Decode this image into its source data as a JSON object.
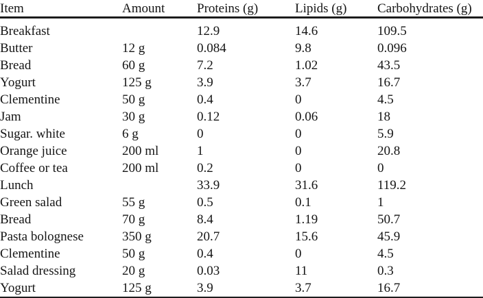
{
  "table": {
    "columns": [
      {
        "key": "item",
        "label": "Item"
      },
      {
        "key": "amount",
        "label": "Amount"
      },
      {
        "key": "proteins",
        "label": "Proteins (g)"
      },
      {
        "key": "lipids",
        "label": "Lipids (g)"
      },
      {
        "key": "carbs",
        "label": "Carbohydrates (g)"
      }
    ],
    "rows": [
      {
        "item": "Breakfast",
        "amount": "",
        "proteins": "12.9",
        "lipids": "14.6",
        "carbs": "109.5"
      },
      {
        "item": "Butter",
        "amount": "12 g",
        "proteins": "0.084",
        "lipids": "9.8",
        "carbs": "0.096"
      },
      {
        "item": "Bread",
        "amount": "60 g",
        "proteins": "7.2",
        "lipids": "1.02",
        "carbs": "43.5"
      },
      {
        "item": "Yogurt",
        "amount": "125 g",
        "proteins": "3.9",
        "lipids": "3.7",
        "carbs": "16.7"
      },
      {
        "item": "Clementine",
        "amount": "50 g",
        "proteins": "0.4",
        "lipids": "0",
        "carbs": "4.5"
      },
      {
        "item": "Jam",
        "amount": "30 g",
        "proteins": "0.12",
        "lipids": "0.06",
        "carbs": "18"
      },
      {
        "item": "Sugar. white",
        "amount": "6 g",
        "proteins": "0",
        "lipids": "0",
        "carbs": "5.9"
      },
      {
        "item": "Orange juice",
        "amount": "200 ml",
        "proteins": "1",
        "lipids": "0",
        "carbs": "20.8"
      },
      {
        "item": "Coffee or tea",
        "amount": "200 ml",
        "proteins": "0.2",
        "lipids": "0",
        "carbs": "0"
      },
      {
        "item": "Lunch",
        "amount": "",
        "proteins": "33.9",
        "lipids": "31.6",
        "carbs": "119.2"
      },
      {
        "item": "Green salad",
        "amount": "55 g",
        "proteins": "0.5",
        "lipids": "0.1",
        "carbs": "1"
      },
      {
        "item": "Bread",
        "amount": "70 g",
        "proteins": "8.4",
        "lipids": "1.19",
        "carbs": "50.7"
      },
      {
        "item": "Pasta bolognese",
        "amount": "350 g",
        "proteins": "20.7",
        "lipids": "15.6",
        "carbs": "45.9"
      },
      {
        "item": "Clementine",
        "amount": "50 g",
        "proteins": "0.4",
        "lipids": "0",
        "carbs": "4.5"
      },
      {
        "item": "Salad dressing",
        "amount": "20 g",
        "proteins": "0.03",
        "lipids": "11",
        "carbs": "0.3"
      },
      {
        "item": "Yogurt",
        "amount": "125 g",
        "proteins": "3.9",
        "lipids": "3.7",
        "carbs": "16.7"
      }
    ]
  }
}
